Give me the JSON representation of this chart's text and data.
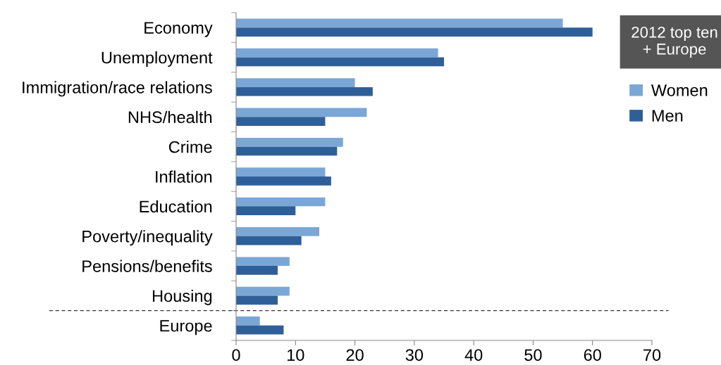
{
  "chart_data": {
    "type": "bar",
    "orientation": "horizontal",
    "categories": [
      "Economy",
      "Unemployment",
      "Immigration/race relations",
      "NHS/health",
      "Crime",
      "Inflation",
      "Education",
      "Poverty/inequality",
      "Pensions/benefits",
      "Housing",
      "Europe"
    ],
    "series": [
      {
        "name": "Women",
        "color": "#7ba7d7",
        "values": [
          55,
          34,
          20,
          22,
          18,
          15,
          15,
          14,
          9,
          9,
          4
        ]
      },
      {
        "name": "Men",
        "color": "#2f5f98",
        "values": [
          60,
          35,
          23,
          15,
          17,
          16,
          10,
          11,
          7,
          7,
          8
        ]
      }
    ],
    "xlim": [
      0,
      70
    ],
    "xticks": [
      0,
      10,
      20,
      30,
      40,
      50,
      60,
      70
    ],
    "annotations": [
      "2012 top ten\n+ Europe"
    ],
    "legend": "right",
    "grid": false
  }
}
